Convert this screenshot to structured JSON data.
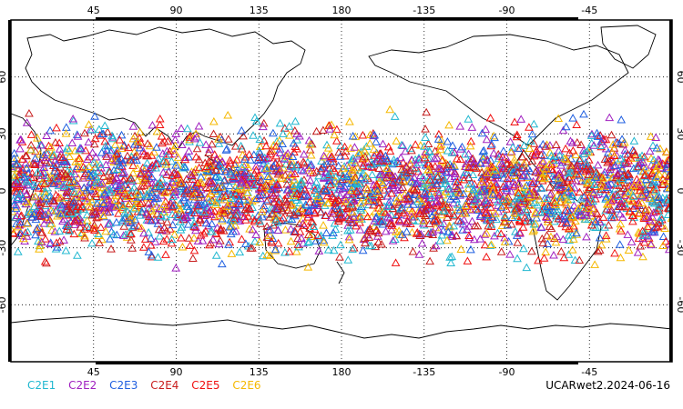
{
  "map": {
    "lon_ticks": [
      "45",
      "90",
      "135",
      "180",
      "-135",
      "-90",
      "-45"
    ],
    "lon_tick_values": [
      45,
      90,
      135,
      180,
      225,
      270,
      315
    ],
    "lat_ticks": [
      "60",
      "30",
      "0",
      "-30",
      "-60"
    ],
    "lat_tick_values": [
      60,
      30,
      0,
      -30,
      -60
    ],
    "lon_range": [
      0,
      360
    ],
    "lat_range": [
      -90,
      90
    ],
    "marker": "open-triangle",
    "grid": "dotted",
    "colors": {
      "land_outline": "#000000",
      "grid": "#000000"
    }
  },
  "legend": {
    "items": [
      {
        "label": "C2E1",
        "color": "#22b8d0"
      },
      {
        "label": "C2E2",
        "color": "#a020c0"
      },
      {
        "label": "C2E3",
        "color": "#1f5fe0"
      },
      {
        "label": "C2E4",
        "color": "#c81e1e"
      },
      {
        "label": "C2E5",
        "color": "#f01010"
      },
      {
        "label": "C2E6",
        "color": "#f5b800"
      }
    ]
  },
  "product_label": "UCARwet2.2024-06-16",
  "chart_data": {
    "type": "scatter",
    "description_series": [
      "C2E1",
      "C2E2",
      "C2E3",
      "C2E4",
      "C2E5",
      "C2E6"
    ],
    "lat_band": [
      -45,
      45
    ],
    "xlim": [
      0,
      360
    ],
    "ylim": [
      -90,
      90
    ]
  }
}
